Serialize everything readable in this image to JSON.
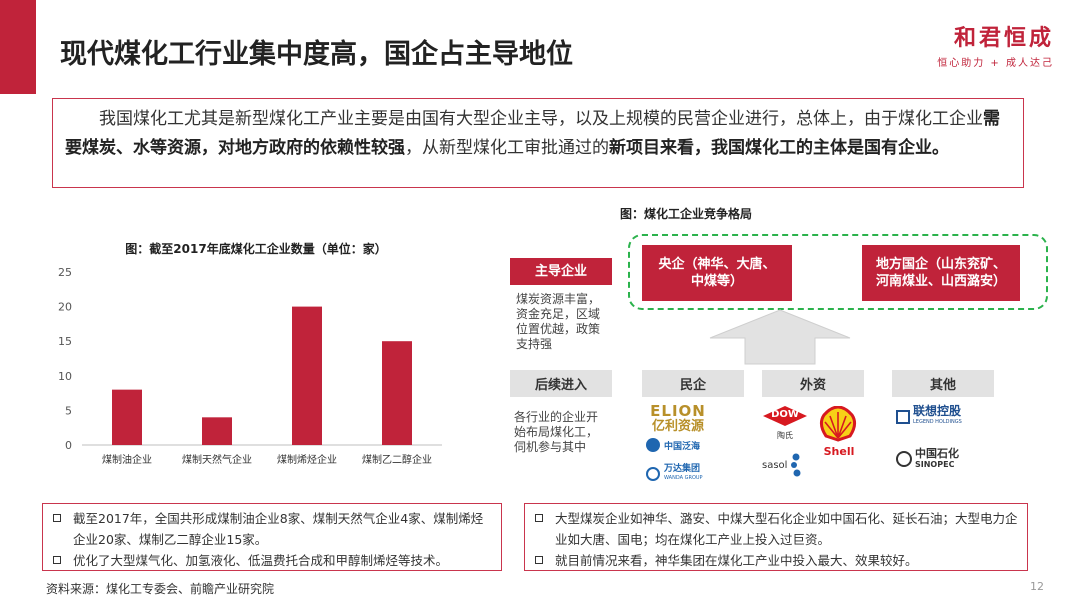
{
  "title": "现代煤化工行业集中度高，国企占主导地位",
  "logo": {
    "main": "和君恒成",
    "sub": "恒心助力 + 成人达己"
  },
  "intro": {
    "p1": "我国煤化工尤其是新型煤化工产业主要是由国有大型企业主导，以及上规模的民营企业进行，总体上，由于煤化工企业",
    "b1": "需要煤炭、水等资源，对地方政府的依赖性较强",
    "p2": "，从新型煤化工审批通过的",
    "b2": "新项目来看，我国煤化工的主体是国有企业。"
  },
  "chart_data": {
    "type": "bar",
    "title": "图：截至2017年底煤化工企业数量（单位：家）",
    "categories": [
      "煤制油企业",
      "煤制天然气企业",
      "煤制烯烃企业",
      "煤制乙二醇企业"
    ],
    "values": [
      8,
      4,
      20,
      15
    ],
    "yticks": [
      0,
      5,
      10,
      15,
      20,
      25
    ],
    "ylim": [
      0,
      25
    ],
    "color": "#c0233a",
    "grid": false
  },
  "diagram": {
    "title": "图：煤化工企业竞争格局",
    "leader_label": "主导企业",
    "leader_desc": [
      "煤炭资源丰富，",
      "资金充足，区域",
      "位置优越，政策",
      "支持强"
    ],
    "central": [
      "央企（神华、大唐、",
      "中煤等）"
    ],
    "local": [
      "地方国企（山东兖矿、",
      "河南煤业、山西潞安）"
    ],
    "follower_label": "后续进入",
    "follower_desc": [
      "各行业的企业开",
      "始布局煤化工，",
      "伺机参与其中"
    ],
    "cat_private": "民企",
    "cat_foreign": "外资",
    "cat_other": "其他",
    "logos": {
      "elion_en": "ELION",
      "elion_cn": "亿利资源",
      "zgfd": "中国泛海",
      "wanda": "万达集团",
      "wanda_en": "WANDA GROUP",
      "dow": "DOW",
      "dow_cn": "陶氏",
      "sasol": "sasol",
      "shell": "Shell",
      "legend_cn": "联想控股",
      "legend_en": "LEGEND HOLDINGS",
      "sinopec_cn": "中国石化",
      "sinopec_en": "SINOPEC"
    }
  },
  "bottom_left": [
    "截至2017年，全国共形成煤制油企业8家、煤制天然气企业4家、煤制烯烃企业20家、煤制乙二醇企业15家。",
    "优化了大型煤气化、加氢液化、低温费托合成和甲醇制烯烃等技术。"
  ],
  "bottom_right": [
    "大型煤炭企业如神华、潞安、中煤大型石化企业如中国石化、延长石油；大型电力企业如大唐、国电；均在煤化工产业上投入过巨资。",
    "就目前情况来看，神华集团在煤化工产业中投入最大、效果较好。"
  ],
  "source": "资料来源：煤化工专委会、前瞻产业研究院",
  "page_number": "12"
}
